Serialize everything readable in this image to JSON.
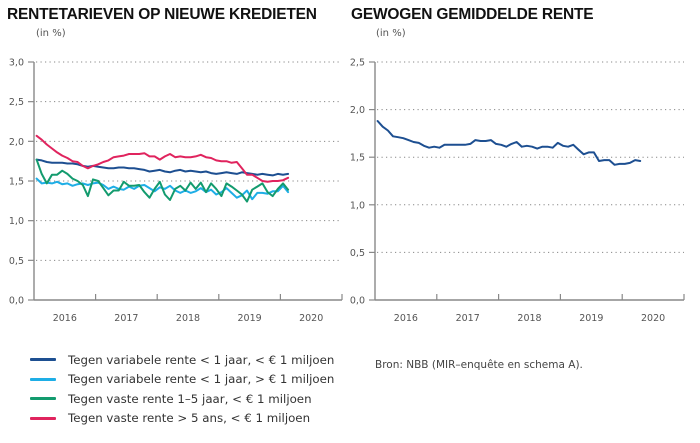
{
  "chart_data": [
    {
      "type": "line",
      "title": "RENTETARIEVEN OP NIEUWE KREDIETEN",
      "ylabel": "(in %)",
      "xlabel": "",
      "ylim": [
        0,
        3.0
      ],
      "yticks": [
        "0,0",
        "0,5",
        "1,0",
        "1,5",
        "2,0",
        "2,5",
        "3,0"
      ],
      "ytick_values": [
        0,
        0.5,
        1.0,
        1.5,
        2.0,
        2.5,
        3.0
      ],
      "xlim": [
        2016,
        2021
      ],
      "xtick_labels": [
        "2016",
        "2017",
        "2018",
        "2019",
        "2020"
      ],
      "grid": "horizontal-dotted",
      "x_start": "2016-01",
      "x_frequency": "monthly",
      "series": [
        {
          "name": "Tegen variabele rente < 1 jaar, < € 1 miljoen",
          "color": "#1d4f91",
          "values": [
            1.77,
            1.76,
            1.74,
            1.73,
            1.73,
            1.73,
            1.72,
            1.72,
            1.71,
            1.69,
            1.68,
            1.69,
            1.68,
            1.67,
            1.66,
            1.66,
            1.67,
            1.67,
            1.66,
            1.66,
            1.65,
            1.64,
            1.62,
            1.63,
            1.64,
            1.62,
            1.61,
            1.63,
            1.64,
            1.62,
            1.63,
            1.62,
            1.61,
            1.62,
            1.6,
            1.59,
            1.6,
            1.61,
            1.6,
            1.59,
            1.61,
            1.6,
            1.59,
            1.58,
            1.59,
            1.58,
            1.57,
            1.59,
            1.58,
            1.59
          ]
        },
        {
          "name": "Tegen variabele rente < 1 jaar, > € 1 miljoen",
          "color": "#1eaee6",
          "values": [
            1.53,
            1.47,
            1.48,
            1.47,
            1.49,
            1.46,
            1.47,
            1.44,
            1.46,
            1.47,
            1.45,
            1.47,
            1.48,
            1.45,
            1.4,
            1.43,
            1.4,
            1.39,
            1.43,
            1.4,
            1.44,
            1.45,
            1.41,
            1.37,
            1.42,
            1.4,
            1.44,
            1.38,
            1.35,
            1.38,
            1.35,
            1.37,
            1.41,
            1.36,
            1.39,
            1.33,
            1.36,
            1.41,
            1.35,
            1.29,
            1.32,
            1.38,
            1.27,
            1.35,
            1.35,
            1.34,
            1.37,
            1.37,
            1.44,
            1.36
          ]
        },
        {
          "name": "Tegen vaste rente 1–5 jaar, < € 1 miljoen",
          "color": "#139b6e",
          "values": [
            1.77,
            1.59,
            1.47,
            1.58,
            1.58,
            1.63,
            1.59,
            1.53,
            1.5,
            1.45,
            1.31,
            1.52,
            1.5,
            1.41,
            1.32,
            1.38,
            1.38,
            1.49,
            1.44,
            1.44,
            1.45,
            1.36,
            1.29,
            1.4,
            1.49,
            1.33,
            1.26,
            1.4,
            1.44,
            1.38,
            1.48,
            1.4,
            1.48,
            1.36,
            1.47,
            1.4,
            1.31,
            1.47,
            1.43,
            1.38,
            1.33,
            1.24,
            1.39,
            1.43,
            1.47,
            1.36,
            1.31,
            1.4,
            1.47,
            1.39
          ]
        },
        {
          "name": "Tegen vaste rente > 5 ans, < € 1 miljoen",
          "color": "#e0245e",
          "values": [
            2.07,
            2.02,
            1.96,
            1.91,
            1.86,
            1.82,
            1.79,
            1.75,
            1.74,
            1.69,
            1.66,
            1.69,
            1.71,
            1.74,
            1.76,
            1.8,
            1.81,
            1.82,
            1.84,
            1.84,
            1.84,
            1.85,
            1.81,
            1.81,
            1.77,
            1.81,
            1.84,
            1.8,
            1.81,
            1.8,
            1.8,
            1.81,
            1.83,
            1.8,
            1.79,
            1.76,
            1.75,
            1.75,
            1.73,
            1.74,
            1.66,
            1.58,
            1.58,
            1.54,
            1.5,
            1.49,
            1.5,
            1.5,
            1.51,
            1.54
          ]
        }
      ],
      "legend": [
        {
          "label": "Tegen variabele rente < 1 jaar, < € 1 miljoen",
          "color": "#1d4f91"
        },
        {
          "label": "Tegen variabele rente < 1 jaar, > € 1 miljoen",
          "color": "#1eaee6"
        },
        {
          "label": "Tegen vaste rente 1–5 jaar, < € 1 miljoen",
          "color": "#139b6e"
        },
        {
          "label": "Tegen vaste rente > 5 ans, < € 1 miljoen",
          "color": "#e0245e"
        }
      ],
      "legend_position": "bottom-left"
    },
    {
      "type": "line",
      "title": "GEWOGEN GEMIDDELDE RENTE",
      "ylabel": "(in %)",
      "xlabel": "",
      "ylim": [
        0,
        2.5
      ],
      "yticks": [
        "0,0",
        "0,5",
        "1,0",
        "1,5",
        "2,0",
        "2,5"
      ],
      "ytick_values": [
        0,
        0.5,
        1.0,
        1.5,
        2.0,
        2.5
      ],
      "xlim": [
        2016,
        2021
      ],
      "xtick_labels": [
        "2016",
        "2017",
        "2018",
        "2019",
        "2020"
      ],
      "grid": "horizontal-dotted",
      "x_start": "2016-01",
      "x_frequency": "monthly",
      "series": [
        {
          "name": "Gewogen gemiddelde rente",
          "color": "#1d4f91",
          "values": [
            1.88,
            1.82,
            1.78,
            1.72,
            1.71,
            1.7,
            1.68,
            1.66,
            1.65,
            1.62,
            1.6,
            1.61,
            1.6,
            1.63,
            1.63,
            1.63,
            1.63,
            1.63,
            1.64,
            1.68,
            1.67,
            1.67,
            1.68,
            1.64,
            1.63,
            1.61,
            1.64,
            1.66,
            1.61,
            1.62,
            1.61,
            1.59,
            1.61,
            1.61,
            1.6,
            1.65,
            1.62,
            1.61,
            1.63,
            1.58,
            1.53,
            1.55,
            1.55,
            1.46,
            1.47,
            1.47,
            1.42,
            1.43,
            1.43,
            1.44,
            1.47,
            1.46
          ]
        }
      ]
    }
  ],
  "source": "Bron: NBB (MIR–enquête en schema A)."
}
